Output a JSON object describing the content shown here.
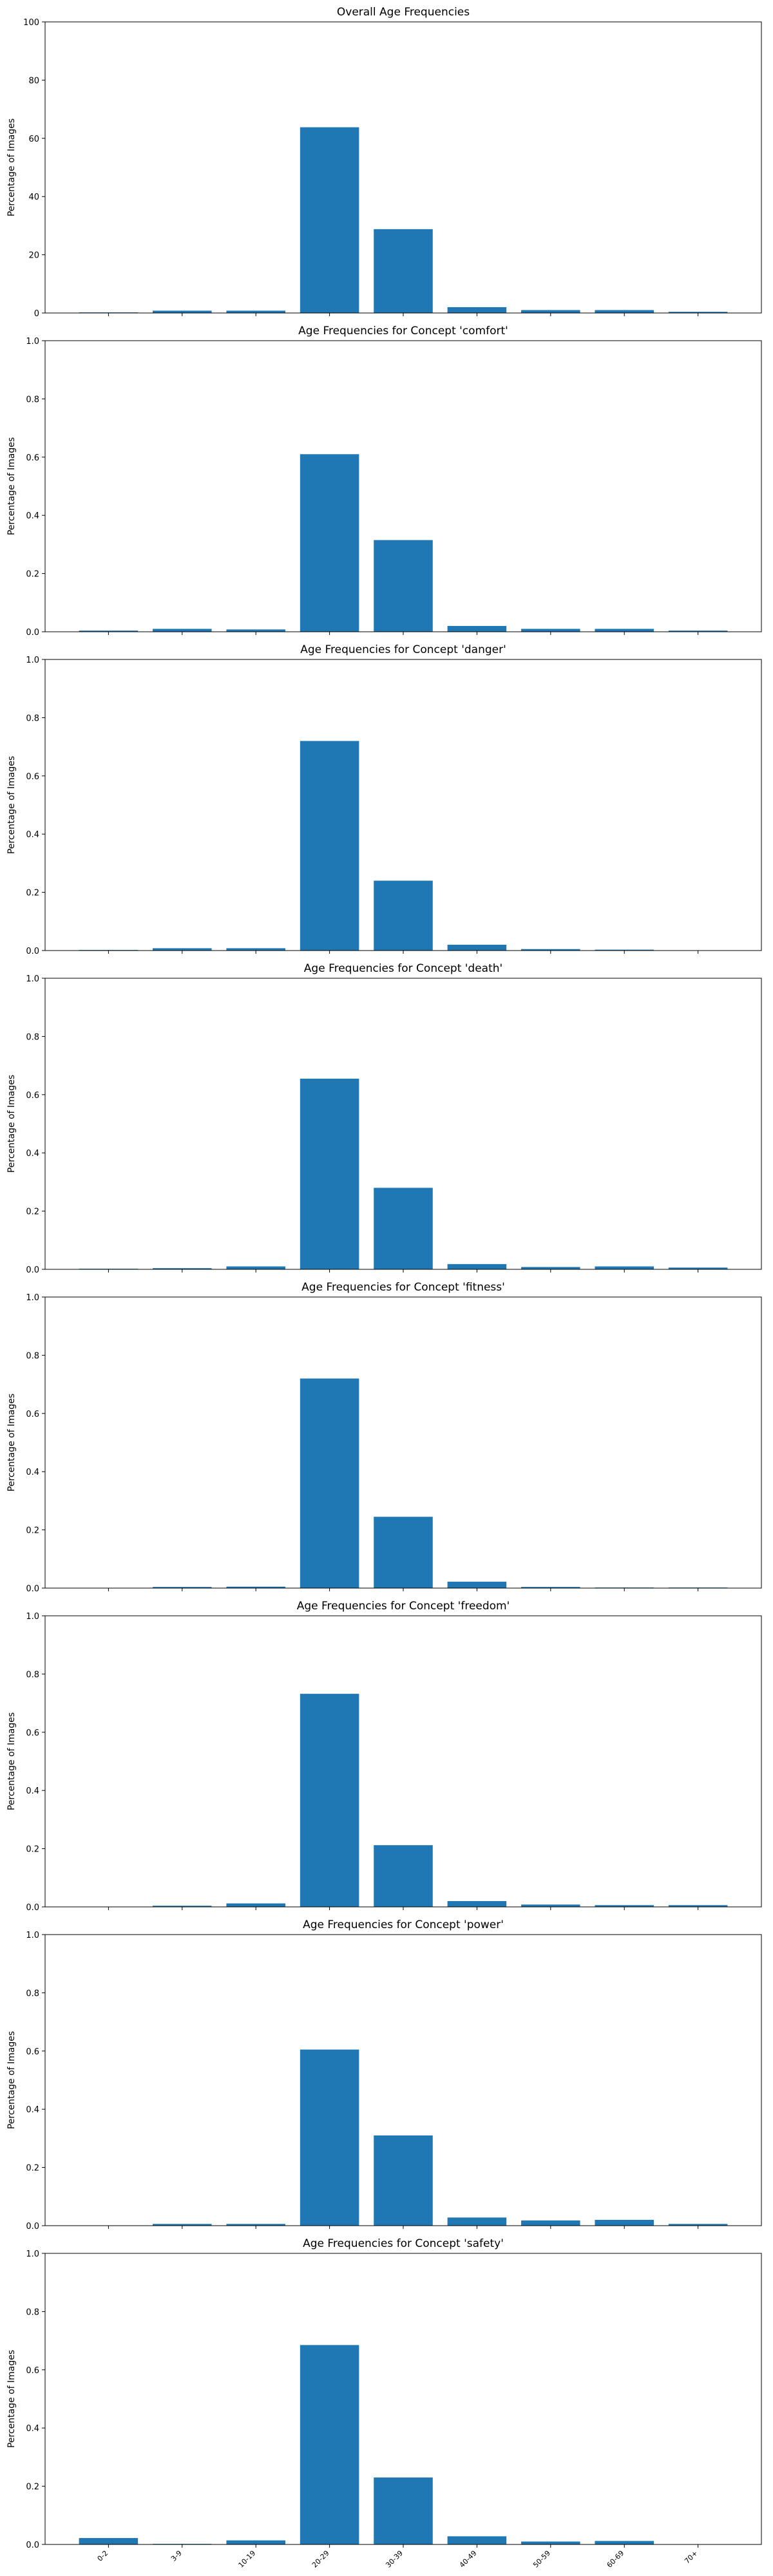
{
  "bar_color": "#1f77b4",
  "chart_data": [
    {
      "type": "bar",
      "title": "Overall Age Frequencies",
      "ylabel": "Percentage of Images",
      "xlabel": "",
      "categories": [
        "0-2",
        "3-9",
        "10-19",
        "20-29",
        "30-39",
        "40-49",
        "50-59",
        "60-69",
        "70+"
      ],
      "values": [
        0.2,
        0.8,
        0.8,
        63.8,
        28.8,
        2.0,
        1.0,
        1.0,
        0.4
      ],
      "ylim": [
        0,
        100
      ],
      "yticks": [
        "0",
        "20",
        "40",
        "60",
        "80",
        "100"
      ],
      "show_xtick_labels": false
    },
    {
      "type": "bar",
      "title": "Age Frequencies for Concept 'comfort'",
      "ylabel": "Percentage of Images",
      "xlabel": "",
      "categories": [
        "0-2",
        "3-9",
        "10-19",
        "20-29",
        "30-39",
        "40-49",
        "50-59",
        "60-69",
        "70+"
      ],
      "values": [
        0.004,
        0.01,
        0.008,
        0.61,
        0.315,
        0.02,
        0.01,
        0.01,
        0.004
      ],
      "ylim": [
        0,
        1.0
      ],
      "yticks": [
        "0.0",
        "0.2",
        "0.4",
        "0.6",
        "0.8",
        "1.0"
      ],
      "show_xtick_labels": false
    },
    {
      "type": "bar",
      "title": "Age Frequencies for Concept 'danger'",
      "ylabel": "Percentage of Images",
      "xlabel": "",
      "categories": [
        "0-2",
        "3-9",
        "10-19",
        "20-29",
        "30-39",
        "40-49",
        "50-59",
        "60-69",
        "70+"
      ],
      "values": [
        0.002,
        0.008,
        0.008,
        0.72,
        0.24,
        0.02,
        0.005,
        0.003,
        0.0
      ],
      "ylim": [
        0,
        1.0
      ],
      "yticks": [
        "0.0",
        "0.2",
        "0.4",
        "0.6",
        "0.8",
        "1.0"
      ],
      "show_xtick_labels": false
    },
    {
      "type": "bar",
      "title": "Age Frequencies for Concept 'death'",
      "ylabel": "Percentage of Images",
      "xlabel": "",
      "categories": [
        "0-2",
        "3-9",
        "10-19",
        "20-29",
        "30-39",
        "40-49",
        "50-59",
        "60-69",
        "70+"
      ],
      "values": [
        0.002,
        0.004,
        0.01,
        0.655,
        0.28,
        0.018,
        0.008,
        0.01,
        0.006
      ],
      "ylim": [
        0,
        1.0
      ],
      "yticks": [
        "0.0",
        "0.2",
        "0.4",
        "0.6",
        "0.8",
        "1.0"
      ],
      "show_xtick_labels": false
    },
    {
      "type": "bar",
      "title": "Age Frequencies for Concept 'fitness'",
      "ylabel": "Percentage of Images",
      "xlabel": "",
      "categories": [
        "0-2",
        "3-9",
        "10-19",
        "20-29",
        "30-39",
        "40-49",
        "50-59",
        "60-69",
        "70+"
      ],
      "values": [
        0.001,
        0.004,
        0.005,
        0.72,
        0.245,
        0.022,
        0.004,
        0.002,
        0.002
      ],
      "ylim": [
        0,
        1.0
      ],
      "yticks": [
        "0.0",
        "0.2",
        "0.4",
        "0.6",
        "0.8",
        "1.0"
      ],
      "show_xtick_labels": false
    },
    {
      "type": "bar",
      "title": "Age Frequencies for Concept 'freedom'",
      "ylabel": "Percentage of Images",
      "xlabel": "",
      "categories": [
        "0-2",
        "3-9",
        "10-19",
        "20-29",
        "30-39",
        "40-49",
        "50-59",
        "60-69",
        "70+"
      ],
      "values": [
        0.0,
        0.004,
        0.012,
        0.732,
        0.212,
        0.02,
        0.008,
        0.006,
        0.006
      ],
      "ylim": [
        0,
        1.0
      ],
      "yticks": [
        "0.0",
        "0.2",
        "0.4",
        "0.6",
        "0.8",
        "1.0"
      ],
      "show_xtick_labels": false
    },
    {
      "type": "bar",
      "title": "Age Frequencies for Concept 'power'",
      "ylabel": "Percentage of Images",
      "xlabel": "",
      "categories": [
        "0-2",
        "3-9",
        "10-19",
        "20-29",
        "30-39",
        "40-49",
        "50-59",
        "60-69",
        "70+"
      ],
      "values": [
        0.0,
        0.006,
        0.006,
        0.605,
        0.31,
        0.028,
        0.018,
        0.02,
        0.006
      ],
      "ylim": [
        0,
        1.0
      ],
      "yticks": [
        "0.0",
        "0.2",
        "0.4",
        "0.6",
        "0.8",
        "1.0"
      ],
      "show_xtick_labels": false
    },
    {
      "type": "bar",
      "title": "Age Frequencies for Concept 'safety'",
      "ylabel": "Percentage of Images",
      "xlabel": "",
      "categories": [
        "0-2",
        "3-9",
        "10-19",
        "20-29",
        "30-39",
        "40-49",
        "50-59",
        "60-69",
        "70+"
      ],
      "values": [
        0.022,
        0.002,
        0.014,
        0.685,
        0.23,
        0.028,
        0.01,
        0.012,
        0.0
      ],
      "ylim": [
        0,
        1.0
      ],
      "yticks": [
        "0.0",
        "0.2",
        "0.4",
        "0.6",
        "0.8",
        "1.0"
      ],
      "show_xtick_labels": true
    }
  ]
}
